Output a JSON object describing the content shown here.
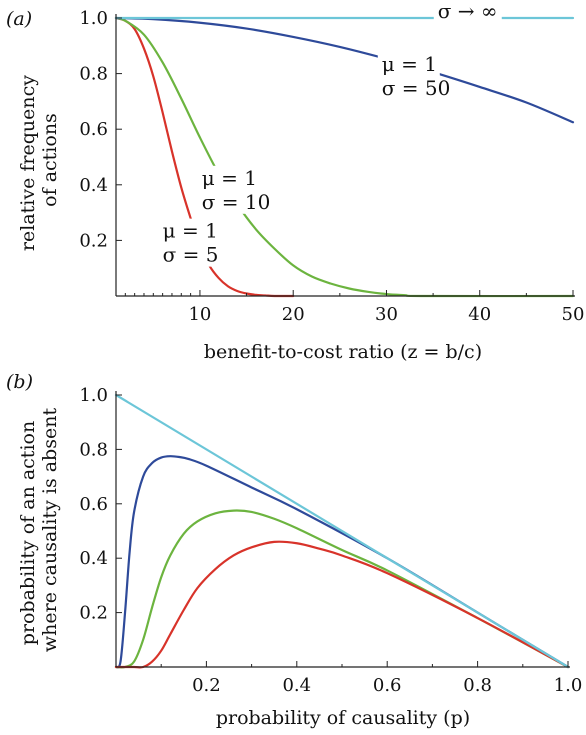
{
  "chart_data": [
    {
      "type": "line",
      "panel_label": "(a)",
      "xlabel": "benefit-to-cost ratio (z = b/c)",
      "ylabel": "relative frequency of actions",
      "xlim": [
        1,
        50
      ],
      "ylim": [
        0,
        1.0
      ],
      "x_ticks": [
        10,
        20,
        30,
        40,
        50
      ],
      "y_ticks": [
        0.2,
        0.4,
        0.6,
        0.8,
        1.0
      ],
      "series": [
        {
          "color": "#d8332a",
          "x": [
            1,
            2,
            3,
            4,
            5,
            6,
            7,
            8,
            9,
            10,
            11,
            12,
            13,
            14,
            15,
            16,
            17,
            18,
            20
          ],
          "y": [
            1.0,
            0.99,
            0.96,
            0.89,
            0.79,
            0.66,
            0.52,
            0.39,
            0.28,
            0.18,
            0.11,
            0.065,
            0.035,
            0.018,
            0.009,
            0.004,
            0.002,
            0.0,
            0.0
          ]
        },
        {
          "color": "#6cb43f",
          "x": [
            1,
            2,
            4,
            6,
            8,
            10,
            12,
            14,
            16,
            18,
            20,
            22,
            24,
            26,
            28,
            30,
            32,
            34,
            50
          ],
          "y": [
            1.0,
            0.99,
            0.94,
            0.84,
            0.71,
            0.57,
            0.44,
            0.33,
            0.24,
            0.17,
            0.11,
            0.07,
            0.045,
            0.027,
            0.015,
            0.007,
            0.003,
            0.0,
            0.0
          ]
        },
        {
          "color": "#2e4a9a",
          "x": [
            1,
            5,
            10,
            15,
            20,
            25,
            30,
            35,
            40,
            45,
            50
          ],
          "y": [
            1.0,
            0.996,
            0.983,
            0.962,
            0.932,
            0.896,
            0.853,
            0.805,
            0.752,
            0.696,
            0.625
          ]
        },
        {
          "color": "#6cc6d8",
          "x": [
            1,
            50
          ],
          "y": [
            1.0,
            1.0
          ]
        }
      ],
      "annotations": [
        {
          "text1": "σ → ∞",
          "x": 35.5,
          "y": 1.0
        },
        {
          "text1": "μ = 1",
          "text2": "σ = 50",
          "x": 29.5,
          "y": 0.81
        },
        {
          "text1": "μ = 1",
          "text2": "σ = 10",
          "x": 10.2,
          "y": 0.4
        },
        {
          "text1": "μ = 1",
          "text2": "σ = 5",
          "x": 6.0,
          "y": 0.21
        }
      ]
    },
    {
      "type": "line",
      "panel_label": "(b)",
      "xlabel": "probability of causality (p)",
      "ylabel": "probability of an action where causality is absent",
      "xlim": [
        0,
        1.0
      ],
      "ylim": [
        0,
        1.0
      ],
      "x_ticks": [
        0.2,
        0.4,
        0.6,
        0.8,
        1.0
      ],
      "y_ticks": [
        0.2,
        0.4,
        0.6,
        0.8,
        1.0
      ],
      "series": [
        {
          "color": "#2e4a9a",
          "x": [
            0.0,
            0.01,
            0.02,
            0.03,
            0.04,
            0.06,
            0.08,
            0.1,
            0.12,
            0.14,
            0.16,
            0.2,
            0.3,
            0.4,
            0.6,
            0.8,
            1.0
          ],
          "y": [
            0.0,
            0.02,
            0.2,
            0.42,
            0.57,
            0.7,
            0.75,
            0.77,
            0.775,
            0.772,
            0.765,
            0.74,
            0.66,
            0.58,
            0.4,
            0.2,
            0.0
          ]
        },
        {
          "color": "#6cb43f",
          "x": [
            0.0,
            0.02,
            0.04,
            0.06,
            0.08,
            0.1,
            0.12,
            0.15,
            0.18,
            0.22,
            0.26,
            0.3,
            0.35,
            0.4,
            0.5,
            0.6,
            0.8,
            1.0
          ],
          "y": [
            0.0,
            0.0,
            0.02,
            0.1,
            0.22,
            0.33,
            0.41,
            0.49,
            0.535,
            0.565,
            0.575,
            0.57,
            0.545,
            0.51,
            0.43,
            0.355,
            0.18,
            0.0
          ]
        },
        {
          "color": "#d8332a",
          "x": [
            0.0,
            0.04,
            0.06,
            0.08,
            0.1,
            0.12,
            0.15,
            0.18,
            0.22,
            0.26,
            0.3,
            0.35,
            0.4,
            0.45,
            0.5,
            0.6,
            0.8,
            1.0
          ],
          "y": [
            0.0,
            0.0,
            0.0,
            0.02,
            0.06,
            0.12,
            0.21,
            0.29,
            0.36,
            0.41,
            0.44,
            0.46,
            0.455,
            0.435,
            0.41,
            0.345,
            0.18,
            0.0
          ]
        },
        {
          "color": "#6cc6d8",
          "x": [
            0.0,
            1.0
          ],
          "y": [
            1.0,
            0.0
          ]
        }
      ]
    }
  ]
}
